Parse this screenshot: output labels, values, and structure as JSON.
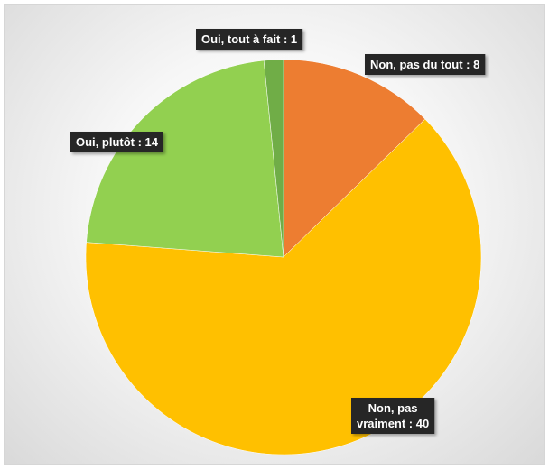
{
  "chart_data": {
    "type": "pie",
    "title": "",
    "slices": [
      {
        "label": "Non, pas du tout",
        "value": 8,
        "color": "#ED7D31",
        "label_text": [
          "Non, pas du tout : 8"
        ],
        "label_pos": "top-right"
      },
      {
        "label": "Non, pas vraiment",
        "value": 40,
        "color": "#FFC000",
        "label_text": [
          "Non, pas",
          "vraiment : 40"
        ],
        "label_pos": "bottom-right"
      },
      {
        "label": "Oui, plutôt",
        "value": 14,
        "color": "#92D050",
        "label_text": [
          "Oui, plutôt : 14"
        ],
        "label_pos": "left"
      },
      {
        "label": "Oui, tout à fait",
        "value": 1,
        "color": "#70AD47",
        "label_text": [
          "Oui, tout à fait : 1"
        ],
        "label_pos": "top"
      }
    ],
    "start_angle": "12 o'clock",
    "direction": "clockwise",
    "legend": "none",
    "label_style": {
      "background": "#262626",
      "text_color": "#FFFFFF"
    }
  }
}
